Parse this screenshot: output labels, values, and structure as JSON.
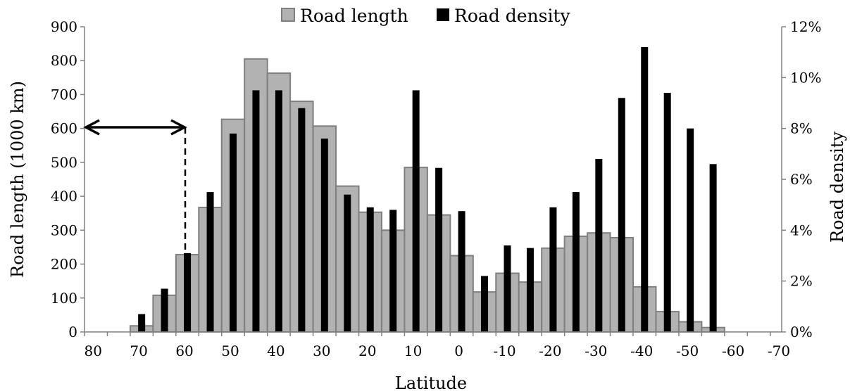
{
  "chart_data": {
    "type": "bar",
    "xlabel": "Latitude",
    "ylabel": "Road length (1000 km)",
    "y2label": "Road density",
    "ylim": [
      0,
      900
    ],
    "y2lim": [
      0,
      12
    ],
    "yticks": [
      "0",
      "100",
      "200",
      "300",
      "400",
      "500",
      "600",
      "700",
      "800",
      "900"
    ],
    "y2ticks": [
      "0%",
      "2%",
      "4%",
      "6%",
      "8%",
      "10%",
      "12%"
    ],
    "xticks": [
      "80",
      "70",
      "60",
      "50",
      "40",
      "30",
      "20",
      "10",
      "0",
      "-10",
      "-20",
      "-30",
      "-40",
      "-50",
      "-60",
      "-70"
    ],
    "legend": {
      "position": "top",
      "entries": [
        "Road length",
        "Road density"
      ]
    },
    "colors": {
      "road_length": "#b2b2b2",
      "road_length_border": "#7f7f7f",
      "road_density": "#000000"
    },
    "annotation": {
      "type": "double-arrow-with-dashed-drop",
      "from_latitude": 80,
      "to_latitude": 60,
      "at_value": 600
    },
    "series": [
      {
        "name": "Road length",
        "axis": "left",
        "bins": [
          {
            "lat": 70,
            "value": 18
          },
          {
            "lat": 65,
            "value": 108
          },
          {
            "lat": 60,
            "value": 228
          },
          {
            "lat": 55,
            "value": 367
          },
          {
            "lat": 50,
            "value": 627
          },
          {
            "lat": 45,
            "value": 805
          },
          {
            "lat": 40,
            "value": 763
          },
          {
            "lat": 35,
            "value": 680
          },
          {
            "lat": 30,
            "value": 607
          },
          {
            "lat": 25,
            "value": 430
          },
          {
            "lat": 20,
            "value": 353
          },
          {
            "lat": 15,
            "value": 300
          },
          {
            "lat": 10,
            "value": 485
          },
          {
            "lat": 5,
            "value": 345
          },
          {
            "lat": 0,
            "value": 225
          },
          {
            "lat": -5,
            "value": 118
          },
          {
            "lat": -10,
            "value": 173
          },
          {
            "lat": -15,
            "value": 147
          },
          {
            "lat": -20,
            "value": 247
          },
          {
            "lat": -25,
            "value": 282
          },
          {
            "lat": -30,
            "value": 292
          },
          {
            "lat": -35,
            "value": 278
          },
          {
            "lat": -40,
            "value": 133
          },
          {
            "lat": -45,
            "value": 60
          },
          {
            "lat": -50,
            "value": 30
          },
          {
            "lat": -55,
            "value": 13
          }
        ]
      },
      {
        "name": "Road density",
        "axis": "right",
        "unit": "%",
        "bins": [
          {
            "lat": 70,
            "value": 0.7
          },
          {
            "lat": 65,
            "value": 1.7
          },
          {
            "lat": 60,
            "value": 3.1
          },
          {
            "lat": 55,
            "value": 5.5
          },
          {
            "lat": 50,
            "value": 7.8
          },
          {
            "lat": 45,
            "value": 9.5
          },
          {
            "lat": 40,
            "value": 9.5
          },
          {
            "lat": 35,
            "value": 8.8
          },
          {
            "lat": 30,
            "value": 7.6
          },
          {
            "lat": 25,
            "value": 5.4
          },
          {
            "lat": 20,
            "value": 4.9
          },
          {
            "lat": 15,
            "value": 4.8
          },
          {
            "lat": 10,
            "value": 9.5
          },
          {
            "lat": 5,
            "value": 6.45
          },
          {
            "lat": 0,
            "value": 4.75
          },
          {
            "lat": -5,
            "value": 2.2
          },
          {
            "lat": -10,
            "value": 3.4
          },
          {
            "lat": -15,
            "value": 3.3
          },
          {
            "lat": -20,
            "value": 4.9
          },
          {
            "lat": -25,
            "value": 5.5
          },
          {
            "lat": -30,
            "value": 6.8
          },
          {
            "lat": -35,
            "value": 9.2
          },
          {
            "lat": -40,
            "value": 11.2
          },
          {
            "lat": -45,
            "value": 9.4
          },
          {
            "lat": -50,
            "value": 8.0
          },
          {
            "lat": -55,
            "value": 6.6
          }
        ]
      }
    ]
  }
}
